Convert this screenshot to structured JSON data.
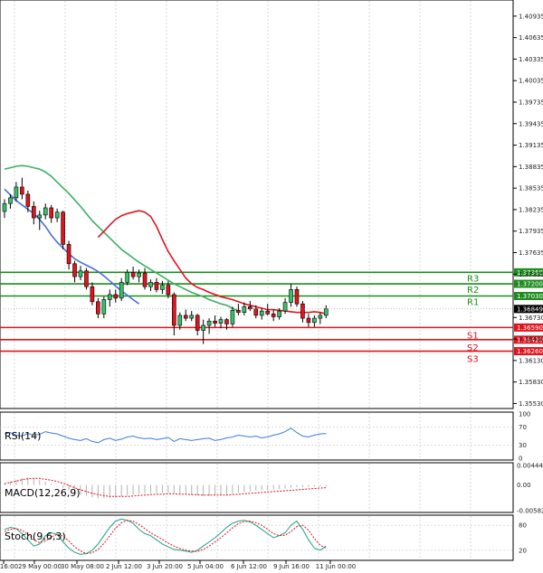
{
  "chart_data": {
    "type": "candlestick",
    "y_ticks": [
      "1.40935",
      "1.40635",
      "1.40335",
      "1.40035",
      "1.39735",
      "1.39435",
      "1.39135",
      "1.38835",
      "1.38535",
      "1.38235",
      "1.37935",
      "1.37635",
      "1.37335",
      "1.36730",
      "1.36430",
      "1.36130",
      "1.35830",
      "1.35530"
    ],
    "y_tick_values": [
      1.40935,
      1.40635,
      1.40335,
      1.40035,
      1.39735,
      1.39435,
      1.39135,
      1.38835,
      1.38535,
      1.38235,
      1.37935,
      1.37635,
      1.37335,
      1.3673,
      1.3643,
      1.3613,
      1.3583,
      1.3553
    ],
    "ylim": [
      1.35485,
      1.41135
    ],
    "x_ticks": [
      "16:00",
      "29 May 00:00",
      "30 May 08:00",
      "2 Jun 12:00",
      "3 Jun 20:00",
      "5 Jun 04:00",
      "6 Jun 12:00",
      "9 Jun 16:00",
      "11 Jun 00:00"
    ],
    "current_price": "1.36849",
    "current_price_value": 1.36849,
    "levels": [
      {
        "label": "R3",
        "value": 1.3736,
        "value_text": "1.37360",
        "color": "#1e8c1e"
      },
      {
        "label": "R2",
        "value": 1.372,
        "value_text": "1.37200",
        "color": "#1e8c1e"
      },
      {
        "label": "R1",
        "value": 1.3703,
        "value_text": "1.37030",
        "color": "#1e8c1e"
      },
      {
        "label": "S1",
        "value": 1.3659,
        "value_text": "1.36590",
        "color": "#e0141e"
      },
      {
        "label": "S2",
        "value": 1.3642,
        "value_text": "1.36420",
        "color": "#e0141e"
      },
      {
        "label": "S3",
        "value": 1.3626,
        "value_text": "1.36260",
        "color": "#e0141e"
      }
    ],
    "candles": [
      [
        1.3821,
        1.3838,
        1.3812,
        1.3832
      ],
      [
        1.3832,
        1.3845,
        1.3825,
        1.384
      ],
      [
        1.384,
        1.3862,
        1.3835,
        1.3855
      ],
      [
        1.3855,
        1.3868,
        1.3838,
        1.3845
      ],
      [
        1.3845,
        1.385,
        1.382,
        1.3828
      ],
      [
        1.3828,
        1.3835,
        1.3803,
        1.3812
      ],
      [
        1.3812,
        1.3822,
        1.3795,
        1.3816
      ],
      [
        1.3816,
        1.3832,
        1.381,
        1.3826
      ],
      [
        1.3826,
        1.383,
        1.3805,
        1.3812
      ],
      [
        1.3812,
        1.3825,
        1.3806,
        1.382
      ],
      [
        1.382,
        1.3822,
        1.3768,
        1.3775
      ],
      [
        1.3775,
        1.378,
        1.374,
        1.3748
      ],
      [
        1.3748,
        1.3752,
        1.3722,
        1.373
      ],
      [
        1.373,
        1.3745,
        1.3725,
        1.3738
      ],
      [
        1.3738,
        1.3742,
        1.3712,
        1.3716
      ],
      [
        1.3716,
        1.3722,
        1.369,
        1.3695
      ],
      [
        1.3695,
        1.37,
        1.3672,
        1.3678
      ],
      [
        1.3678,
        1.3702,
        1.3672,
        1.3698
      ],
      [
        1.3698,
        1.3712,
        1.3688,
        1.3705
      ],
      [
        1.3705,
        1.3712,
        1.3694,
        1.37
      ],
      [
        1.37,
        1.3728,
        1.3696,
        1.3722
      ],
      [
        1.3722,
        1.374,
        1.3718,
        1.3736
      ],
      [
        1.3736,
        1.3744,
        1.3726,
        1.373
      ],
      [
        1.373,
        1.374,
        1.3722,
        1.3735
      ],
      [
        1.3735,
        1.3742,
        1.3712,
        1.3716
      ],
      [
        1.3716,
        1.3726,
        1.371,
        1.3722
      ],
      [
        1.3722,
        1.3728,
        1.3708,
        1.3712
      ],
      [
        1.3712,
        1.3724,
        1.3706,
        1.3718
      ],
      [
        1.3718,
        1.3724,
        1.37,
        1.3705
      ],
      [
        1.3705,
        1.3708,
        1.3648,
        1.3662
      ],
      [
        1.3662,
        1.368,
        1.3656,
        1.3676
      ],
      [
        1.3676,
        1.3684,
        1.3668,
        1.3672
      ],
      [
        1.3672,
        1.3682,
        1.3668,
        1.3676
      ],
      [
        1.3676,
        1.3678,
        1.3648,
        1.3655
      ],
      [
        1.3655,
        1.367,
        1.3636,
        1.3662
      ],
      [
        1.3662,
        1.3672,
        1.365,
        1.3668
      ],
      [
        1.3668,
        1.3676,
        1.366,
        1.3665
      ],
      [
        1.3665,
        1.3674,
        1.3658,
        1.367
      ],
      [
        1.367,
        1.3672,
        1.3656,
        1.3664
      ],
      [
        1.3664,
        1.3688,
        1.366,
        1.3683
      ],
      [
        1.3683,
        1.3692,
        1.3676,
        1.368
      ],
      [
        1.368,
        1.3694,
        1.3676,
        1.3688
      ],
      [
        1.3688,
        1.3696,
        1.3682,
        1.3685
      ],
      [
        1.3685,
        1.369,
        1.3672,
        1.3676
      ],
      [
        1.3676,
        1.3686,
        1.367,
        1.3682
      ],
      [
        1.3682,
        1.3692,
        1.3676,
        1.3678
      ],
      [
        1.3678,
        1.3684,
        1.3668,
        1.3674
      ],
      [
        1.3674,
        1.3686,
        1.367,
        1.3682
      ],
      [
        1.3682,
        1.37,
        1.3678,
        1.3694
      ],
      [
        1.3694,
        1.372,
        1.3688,
        1.3712
      ],
      [
        1.3712,
        1.3716,
        1.3688,
        1.3692
      ],
      [
        1.3692,
        1.3696,
        1.3666,
        1.3672
      ],
      [
        1.3672,
        1.3678,
        1.366,
        1.3666
      ],
      [
        1.3666,
        1.3676,
        1.366,
        1.3672
      ],
      [
        1.3672,
        1.368,
        1.3664,
        1.3676
      ],
      [
        1.3676,
        1.369,
        1.3672,
        1.3685
      ]
    ],
    "ema_fast": [
      1.3785,
      1.3793,
      1.3802,
      1.381,
      1.3815,
      1.3818,
      1.382,
      1.3822,
      1.382,
      1.3814,
      1.38,
      1.3782,
      1.3765,
      1.3752,
      1.374,
      1.3728,
      1.372,
      1.3715,
      1.3712,
      1.3708,
      1.3705,
      1.3702,
      1.37,
      1.3698,
      1.3695,
      1.3692,
      1.369,
      1.3688,
      1.3686,
      1.3684,
      1.3684,
      1.3683,
      1.3682,
      1.3681,
      1.368,
      1.368,
      1.368,
      1.3681,
      1.368,
      1.3678
    ],
    "sma_mid": [
      1.3852,
      1.3844,
      1.3836,
      1.383,
      1.3824,
      1.3818,
      1.381,
      1.38,
      1.3788,
      1.3778,
      1.377,
      1.3762,
      1.3755,
      1.375,
      1.3746,
      1.3742,
      1.3737,
      1.3731,
      1.3724,
      1.3717,
      1.371,
      1.3704,
      1.3698,
      1.3692
    ],
    "sma_slow": [
      1.388,
      1.3882,
      1.3884,
      1.3885,
      1.3884,
      1.3882,
      1.388,
      1.3876,
      1.387,
      1.3862,
      1.3854,
      1.3846,
      1.3837,
      1.3828,
      1.3818,
      1.3808,
      1.38,
      1.3792,
      1.3784,
      1.3776,
      1.3768,
      1.3762,
      1.3756,
      1.375,
      1.3745,
      1.374,
      1.3735,
      1.373,
      1.3725,
      1.372,
      1.3716,
      1.3712,
      1.3708,
      1.3705,
      1.3702,
      1.3698,
      1.3695,
      1.3692,
      1.369,
      1.3686,
      1.3682
    ],
    "rsi": {
      "label": "RSI(14)",
      "ticks": [
        "100",
        "70",
        "30",
        "0"
      ],
      "tick_values": [
        100,
        70,
        30,
        0
      ],
      "values": [
        55,
        58,
        52,
        50,
        56,
        52,
        54,
        60,
        57,
        55,
        50,
        45,
        42,
        40,
        44,
        38,
        35,
        42,
        45,
        40,
        43,
        48,
        50,
        46,
        44,
        45,
        42,
        44,
        47,
        38,
        44,
        42,
        40,
        42,
        44,
        45,
        40,
        42,
        46,
        48,
        52,
        50,
        48,
        50,
        46,
        48,
        52,
        55,
        60,
        68,
        58,
        50,
        48,
        52,
        55,
        56
      ]
    },
    "macd": {
      "label": "MACD(12,26,9)",
      "ticks": [
        "0.004445",
        "0.00",
        "-0.005827"
      ],
      "tick_values": [
        0.004445,
        0,
        -0.005827
      ],
      "hist": [
        0.0004,
        0.0008,
        0.0012,
        0.0016,
        0.0018,
        0.0016,
        0.0012,
        0.0008,
        0.0004,
        0,
        -0.0006,
        -0.0012,
        -0.0018,
        -0.0022,
        -0.0025,
        -0.0028,
        -0.003,
        -0.003,
        -0.0029,
        -0.0028,
        -0.0026,
        -0.0024,
        -0.0022,
        -0.002,
        -0.0019,
        -0.0018,
        -0.0018,
        -0.0018,
        -0.0018,
        -0.0019,
        -0.0021,
        -0.0022,
        -0.0023,
        -0.0024,
        -0.0025,
        -0.0025,
        -0.0024,
        -0.0023,
        -0.0022,
        -0.002,
        -0.0018,
        -0.0016,
        -0.0014,
        -0.0013,
        -0.0012,
        -0.0011,
        -0.001,
        -0.0009,
        -0.0008,
        -0.0006,
        -0.0005,
        -0.0005,
        -0.0004,
        -0.0004,
        -0.0003,
        -0.0003
      ],
      "signal": [
        0.0003,
        0.0006,
        0.0009,
        0.0012,
        0.0014,
        0.0015,
        0.0015,
        0.0013,
        0.0011,
        0.0008,
        0.0004,
        -0.0001,
        -0.0006,
        -0.0011,
        -0.0015,
        -0.0019,
        -0.0022,
        -0.0024,
        -0.0026,
        -0.0026,
        -0.0026,
        -0.0026,
        -0.0025,
        -0.0024,
        -0.0023,
        -0.0022,
        -0.0021,
        -0.0021,
        -0.002,
        -0.002,
        -0.0021,
        -0.0021,
        -0.0022,
        -0.0022,
        -0.0023,
        -0.0023,
        -0.0023,
        -0.0023,
        -0.0023,
        -0.0022,
        -0.0021,
        -0.002,
        -0.0019,
        -0.0018,
        -0.0017,
        -0.0016,
        -0.0015,
        -0.0014,
        -0.0013,
        -0.0012,
        -0.0011,
        -0.001,
        -0.0009,
        -0.0008,
        -0.0007,
        -0.0006
      ]
    },
    "stoch": {
      "label": "Stoch(9,6,3)",
      "ticks": [
        "80",
        "20"
      ],
      "tick_values": [
        80,
        20
      ],
      "main": [
        70,
        75,
        72,
        60,
        45,
        30,
        35,
        55,
        62,
        58,
        40,
        25,
        15,
        10,
        12,
        20,
        35,
        55,
        75,
        90,
        95,
        92,
        85,
        70,
        60,
        55,
        45,
        35,
        28,
        22,
        20,
        18,
        15,
        20,
        30,
        40,
        50,
        62,
        75,
        85,
        90,
        92,
        88,
        80,
        70,
        60,
        50,
        55,
        62,
        80,
        90,
        70,
        45,
        25,
        20,
        30
      ],
      "signal": [
        65,
        70,
        72,
        68,
        58,
        45,
        38,
        42,
        52,
        58,
        54,
        42,
        28,
        18,
        12,
        14,
        22,
        36,
        55,
        73,
        86,
        92,
        90,
        82,
        72,
        62,
        54,
        46,
        37,
        30,
        24,
        20,
        18,
        17,
        22,
        30,
        40,
        50,
        62,
        74,
        84,
        89,
        90,
        86,
        80,
        70,
        60,
        55,
        56,
        65,
        77,
        80,
        68,
        48,
        32,
        25
      ]
    }
  }
}
